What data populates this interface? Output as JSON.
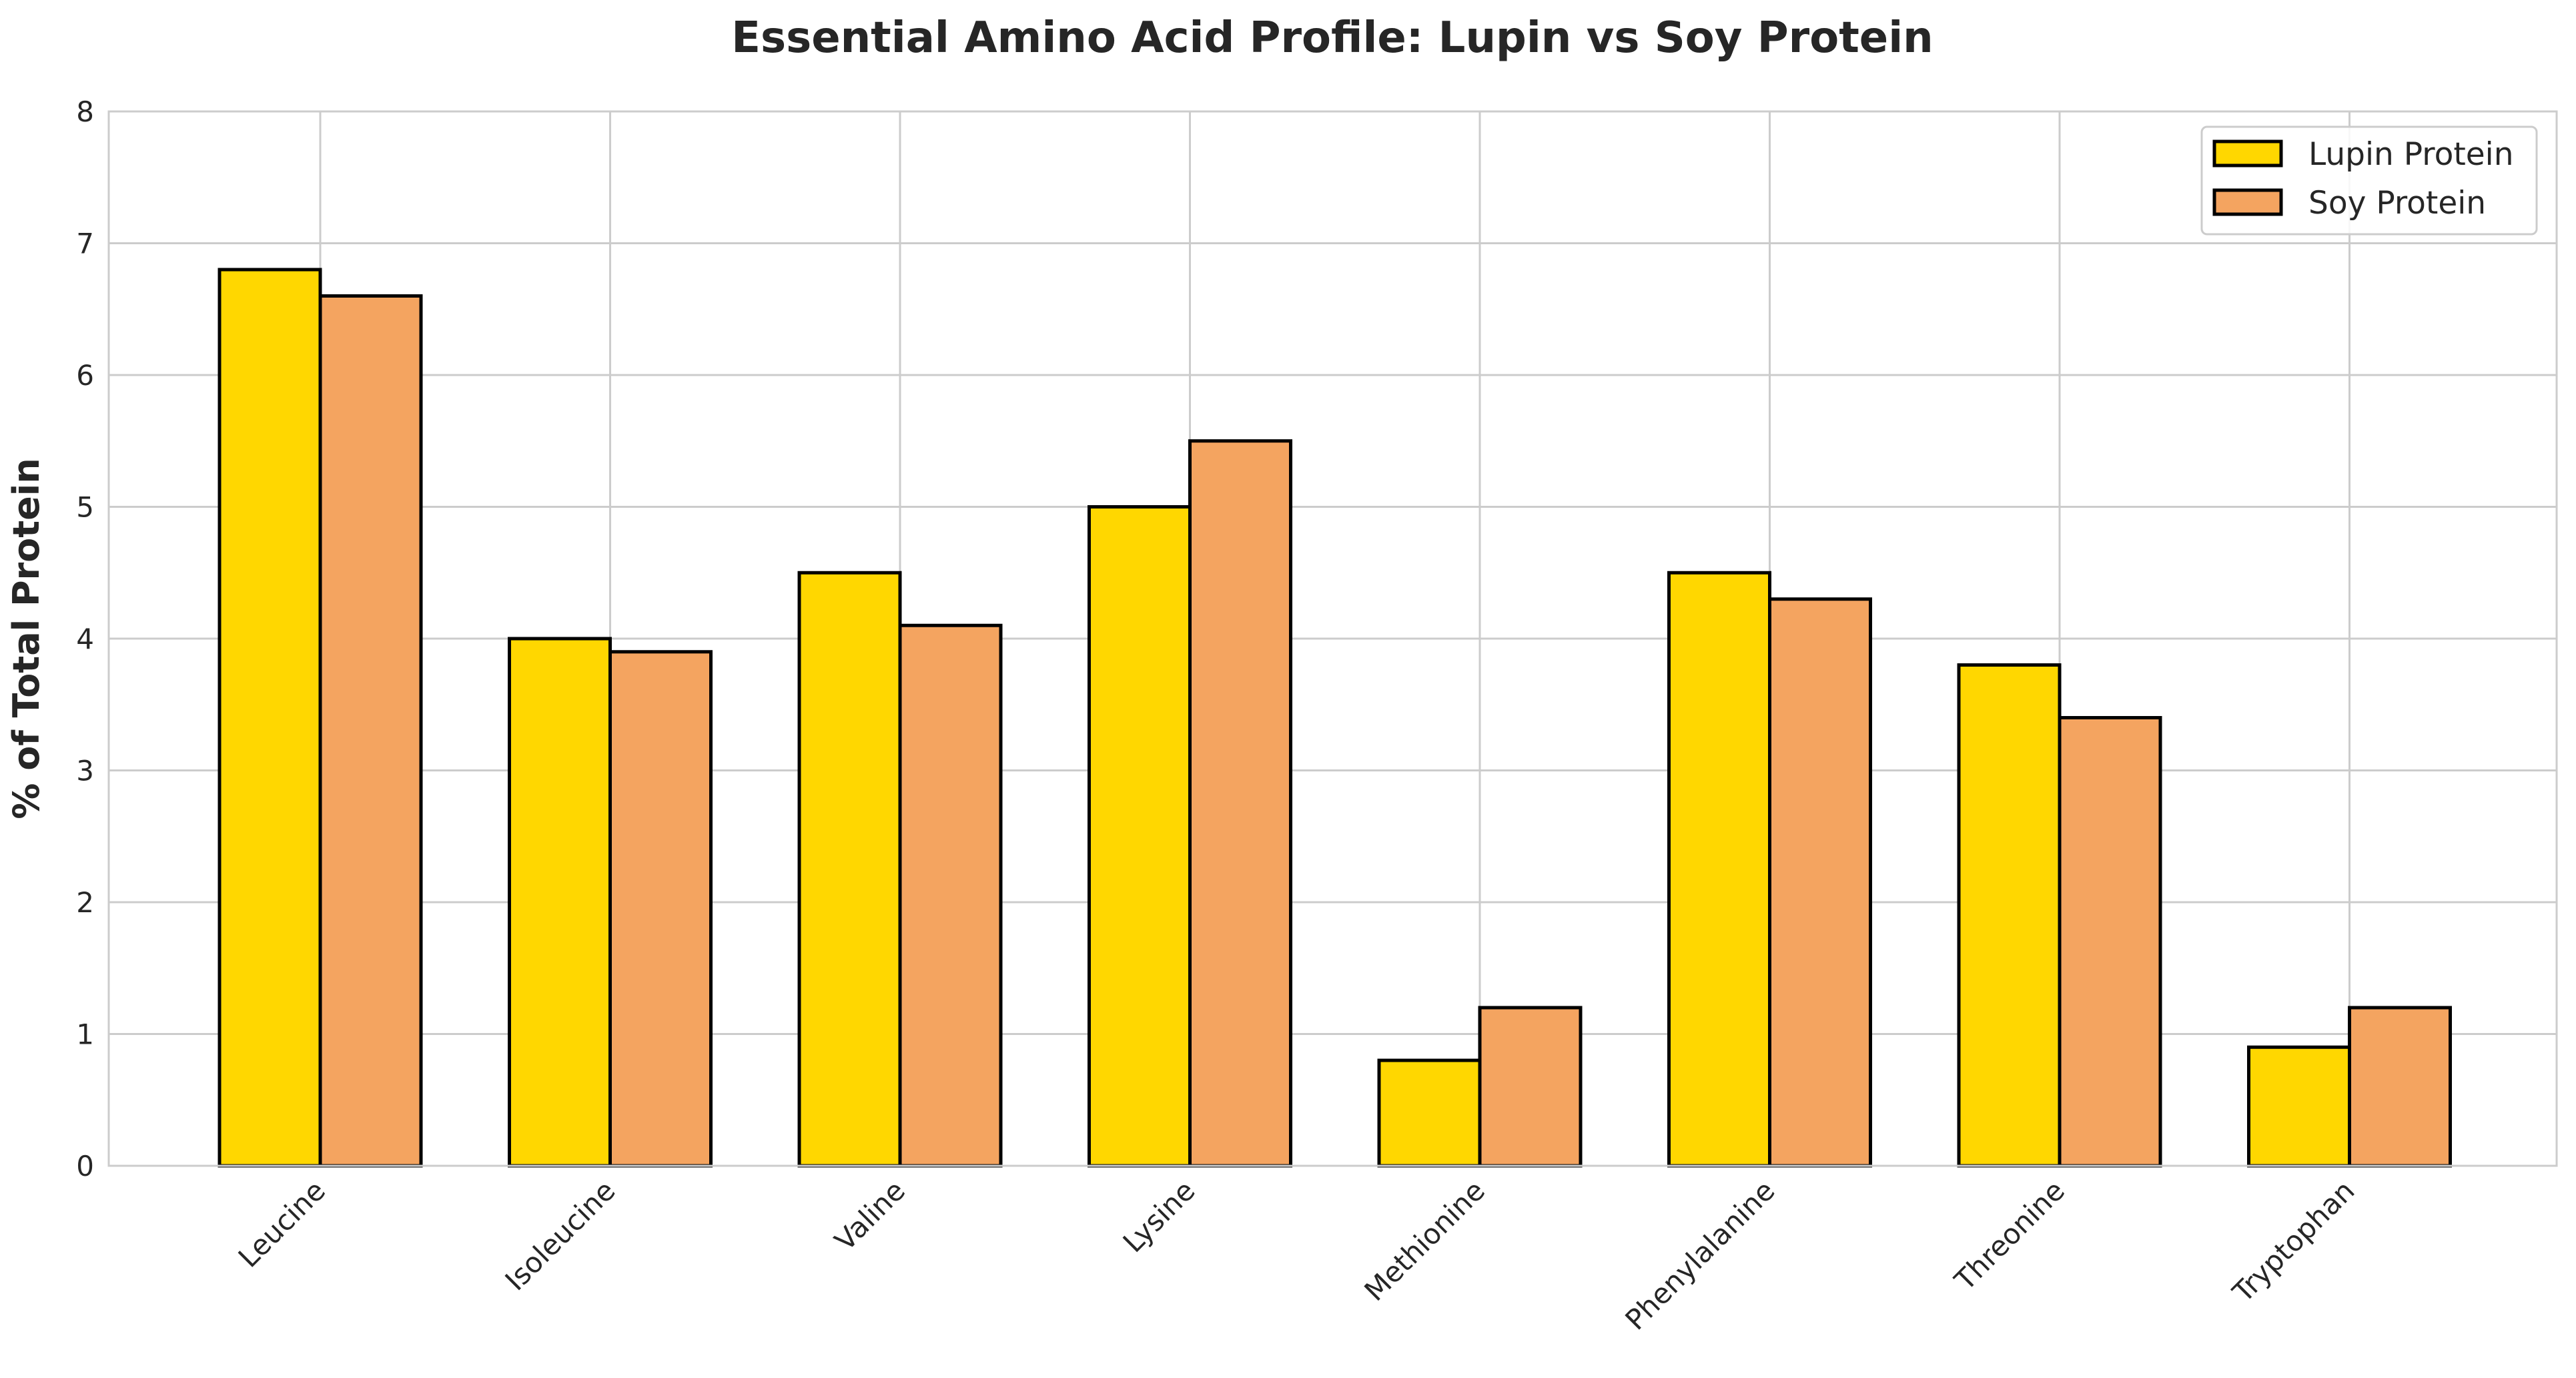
{
  "chart_data": {
    "type": "bar",
    "title": "Essential Amino Acid Profile: Lupin vs Soy Protein",
    "xlabel": "",
    "ylabel": "% of Total Protein",
    "categories": [
      "Leucine",
      "Isoleucine",
      "Valine",
      "Lysine",
      "Methionine",
      "Phenylalanine",
      "Threonine",
      "Tryptophan"
    ],
    "series": [
      {
        "name": "Lupin Protein",
        "color": "#FFD700",
        "values": [
          6.8,
          4.0,
          4.5,
          5.0,
          0.8,
          4.5,
          3.8,
          0.9
        ]
      },
      {
        "name": "Soy Protein",
        "color": "#F4A460",
        "values": [
          6.6,
          3.9,
          4.1,
          5.5,
          1.2,
          4.3,
          3.4,
          1.2
        ]
      }
    ],
    "ylim": [
      0,
      8
    ],
    "yticks": [
      "0",
      "1",
      "2",
      "3",
      "4",
      "5",
      "6",
      "7",
      "8"
    ],
    "grid": true,
    "legend_position": "upper right",
    "bar_edgecolor": "#000000",
    "xtick_rotation": 45
  }
}
